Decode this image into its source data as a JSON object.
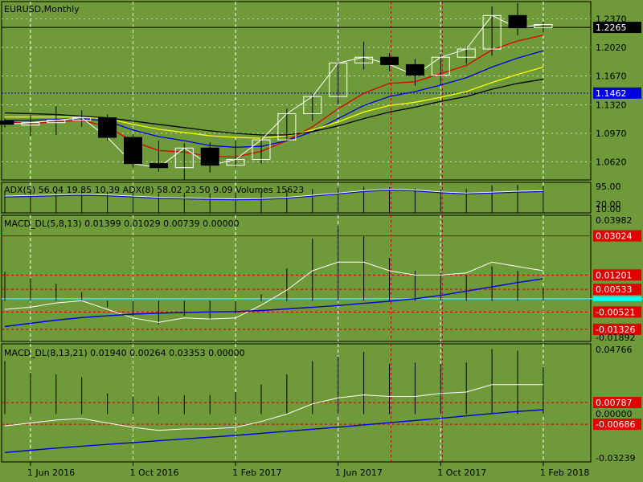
{
  "colors": {
    "background": "#6e9a3a",
    "grid": "#ffffff",
    "text": "#000000",
    "bull_candle": "#ffffff",
    "bear_candle": "#000000",
    "ma_red": "#e00000",
    "ma_blue": "#0000e0",
    "ma_yellow": "#ffff00",
    "ma_black": "#000000",
    "price_line": "#ffffff",
    "level_red": "#cc0000",
    "level_blue": "#0000cc",
    "label_red_bg": "#e00000",
    "label_black_bg": "#000000",
    "label_blue_bg": "#0000e0",
    "cyan": "#00ffff"
  },
  "chart_data": {
    "type": "candlestick",
    "title": "EURUSD,Monthly",
    "x_labels": [
      "1 Jun 2016",
      "1 Oct 2016",
      "1 Feb 2017",
      "1 Jun 2017",
      "1 Oct 2017",
      "1 Feb 2018"
    ],
    "panels": [
      {
        "id": "price",
        "title": "EURUSD,Monthly",
        "ylim": [
          1.04,
          1.258
        ],
        "yticks": [
          "1.2370",
          "1.2020",
          "1.1670",
          "1.1320",
          "1.0970",
          "1.0620"
        ],
        "current_label": "1.2265",
        "current_value": 1.2265,
        "level_label": "1.1462",
        "level_value": 1.1462,
        "candles": [
          {
            "o": 1.112,
            "h": 1.115,
            "l": 1.104,
            "c": 1.108
          },
          {
            "o": 1.107,
            "h": 1.12,
            "l": 1.094,
            "c": 1.11
          },
          {
            "o": 1.11,
            "h": 1.13,
            "l": 1.095,
            "c": 1.113
          },
          {
            "o": 1.113,
            "h": 1.125,
            "l": 1.105,
            "c": 1.116
          },
          {
            "o": 1.116,
            "h": 1.12,
            "l": 1.088,
            "c": 1.092
          },
          {
            "o": 1.092,
            "h": 1.096,
            "l": 1.055,
            "c": 1.06
          },
          {
            "o": 1.06,
            "h": 1.088,
            "l": 1.05,
            "c": 1.055
          },
          {
            "o": 1.055,
            "h": 1.085,
            "l": 1.04,
            "c": 1.079
          },
          {
            "o": 1.079,
            "h": 1.086,
            "l": 1.049,
            "c": 1.058
          },
          {
            "o": 1.058,
            "h": 1.088,
            "l": 1.055,
            "c": 1.065
          },
          {
            "o": 1.065,
            "h": 1.092,
            "l": 1.06,
            "c": 1.089
          },
          {
            "o": 1.089,
            "h": 1.127,
            "l": 1.087,
            "c": 1.121
          },
          {
            "o": 1.121,
            "h": 1.145,
            "l": 1.112,
            "c": 1.142
          },
          {
            "o": 1.142,
            "h": 1.184,
            "l": 1.132,
            "c": 1.183
          },
          {
            "o": 1.183,
            "h": 1.209,
            "l": 1.175,
            "c": 1.19
          },
          {
            "o": 1.19,
            "h": 1.195,
            "l": 1.173,
            "c": 1.181
          },
          {
            "o": 1.181,
            "h": 1.188,
            "l": 1.155,
            "c": 1.168
          },
          {
            "o": 1.168,
            "h": 1.194,
            "l": 1.156,
            "c": 1.19
          },
          {
            "o": 1.19,
            "h": 1.202,
            "l": 1.182,
            "c": 1.2
          },
          {
            "o": 1.2,
            "h": 1.252,
            "l": 1.192,
            "c": 1.241
          },
          {
            "o": 1.241,
            "h": 1.256,
            "l": 1.217,
            "c": 1.226
          },
          {
            "o": 1.226,
            "h": 1.233,
            "l": 1.22,
            "c": 1.23
          }
        ],
        "moving_averages": [
          {
            "color": "ma_red",
            "values": [
              1.111,
              1.109,
              1.111,
              1.113,
              1.105,
              1.087,
              1.076,
              1.074,
              1.069,
              1.068,
              1.075,
              1.088,
              1.105,
              1.127,
              1.146,
              1.158,
              1.16,
              1.17,
              1.18,
              1.199,
              1.21,
              1.217
            ]
          },
          {
            "color": "ma_blue",
            "values": [
              1.113,
              1.113,
              1.114,
              1.115,
              1.112,
              1.101,
              1.093,
              1.088,
              1.082,
              1.08,
              1.081,
              1.088,
              1.099,
              1.115,
              1.131,
              1.142,
              1.148,
              1.156,
              1.165,
              1.178,
              1.189,
              1.198
            ]
          },
          {
            "color": "ma_yellow",
            "values": [
              1.117,
              1.117,
              1.117,
              1.117,
              1.115,
              1.108,
              1.102,
              1.098,
              1.094,
              1.092,
              1.091,
              1.094,
              1.101,
              1.111,
              1.123,
              1.131,
              1.135,
              1.141,
              1.148,
              1.159,
              1.169,
              1.178
            ]
          },
          {
            "color": "ma_black",
            "values": [
              1.122,
              1.121,
              1.12,
              1.118,
              1.116,
              1.112,
              1.108,
              1.104,
              1.1,
              1.097,
              1.095,
              1.095,
              1.099,
              1.106,
              1.115,
              1.123,
              1.129,
              1.136,
              1.142,
              1.151,
              1.158,
              1.163
            ]
          },
          {
            "color": "price_line",
            "values": [
              1.108,
              1.11,
              1.113,
              1.116,
              1.092,
              1.06,
              1.055,
              1.079,
              1.058,
              1.065,
              1.089,
              1.121,
              1.142,
              1.183,
              1.19,
              1.181,
              1.168,
              1.19,
              1.2,
              1.241,
              1.226,
              1.23
            ]
          }
        ]
      },
      {
        "id": "adx",
        "title": "ADX(5) 56.04 19.85 10.39 ADX(8) 58.02 23.50 9.09 Volumes 15623",
        "ylim": [
          0,
          100
        ],
        "yticks": [
          "95.00",
          "20.00",
          "10.00"
        ],
        "line": [
          52,
          54,
          56,
          58,
          56,
          52,
          48,
          46,
          44,
          43,
          44,
          48,
          55,
          62,
          70,
          75,
          72,
          66,
          62,
          65,
          68,
          70
        ],
        "volumes": [
          70,
          72,
          70,
          70,
          68,
          66,
          64,
          66,
          64,
          66,
          70,
          74,
          78,
          82,
          86,
          84,
          80,
          78,
          78,
          90,
          92,
          88
        ]
      },
      {
        "id": "macd1",
        "title": "MACD_DL(5,8,13) 0.01399 0.01029 0.00739 0.00000",
        "ylim": [
          -0.01892,
          0.03982
        ],
        "yticks_top": "0.03982",
        "yticks_bottom": "-0.01892",
        "levels": [
          {
            "value": 0.03024,
            "label": "0.03024"
          },
          {
            "value": 0.01201,
            "label": "0.01201"
          },
          {
            "value": 0.00533,
            "label": "0.00533"
          },
          {
            "value": -0.00521,
            "label": "-0.00521"
          },
          {
            "value": -0.01326,
            "label": "-0.01326"
          }
        ],
        "bars": [
          0.0135,
          0.0105,
          0.008,
          0.004,
          -0.003,
          -0.007,
          -0.011,
          -0.007,
          -0.009,
          -0.006,
          0.003,
          0.015,
          0.029,
          0.035,
          0.03,
          0.02,
          0.014,
          0.013,
          0.012,
          0.016,
          0.014,
          0.006
        ],
        "white_line": [
          -0.004,
          -0.003,
          -0.001,
          0.0,
          -0.004,
          -0.008,
          -0.01,
          -0.008,
          -0.0085,
          -0.008,
          -0.002,
          0.005,
          0.014,
          0.018,
          0.018,
          0.014,
          0.012,
          0.012,
          0.013,
          0.018,
          0.016,
          0.014
        ],
        "blue_line": [
          -0.012,
          -0.0105,
          -0.009,
          -0.0078,
          -0.007,
          -0.0062,
          -0.0058,
          -0.0055,
          -0.0052,
          -0.005,
          -0.0045,
          -0.0038,
          -0.003,
          -0.0022,
          -0.0012,
          -0.0002,
          0.001,
          0.0025,
          0.0045,
          0.0065,
          0.0085,
          0.0103
        ],
        "cyan_level": 0.001
      },
      {
        "id": "macd2",
        "title": "MACD_DL(8,13,21) 0.01940 0.00264 0.03353 0.00000",
        "ylim": [
          -0.03239,
          0.04766
        ],
        "yticks_top": "0.04766",
        "yticks_zero": "0.00000",
        "yticks_bottom": "-0.03239",
        "levels": [
          {
            "value": 0.00787,
            "label": "0.00787"
          },
          {
            "value": -0.00686,
            "label": "-0.00686"
          }
        ],
        "bars": [
          0.036,
          0.028,
          0.027,
          0.025,
          0.014,
          0.012,
          0.012,
          0.013,
          0.013,
          0.015,
          0.02,
          0.027,
          0.036,
          0.039,
          0.042,
          0.034,
          0.035,
          0.034,
          0.035,
          0.044,
          0.043,
          0.032
        ],
        "white_line": [
          -0.008,
          -0.006,
          -0.004,
          -0.003,
          -0.006,
          -0.009,
          -0.011,
          -0.01,
          -0.01,
          -0.009,
          -0.005,
          0.0,
          0.007,
          0.011,
          0.013,
          0.012,
          0.012,
          0.014,
          0.015,
          0.02,
          0.02,
          0.02
        ],
        "blue_line": [
          -0.026,
          -0.0245,
          -0.023,
          -0.0217,
          -0.0205,
          -0.0193,
          -0.018,
          -0.0168,
          -0.0156,
          -0.0144,
          -0.013,
          -0.0116,
          -0.0102,
          -0.0088,
          -0.0073,
          -0.0058,
          -0.0043,
          -0.0028,
          -0.0012,
          0.0004,
          0.0018,
          0.003
        ]
      }
    ]
  }
}
